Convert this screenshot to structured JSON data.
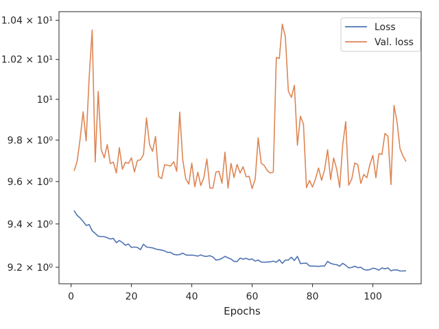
{
  "chart_data": {
    "type": "line",
    "title": "",
    "xlabel": "Epochs",
    "ylabel": "",
    "xlim": [
      -4,
      116
    ],
    "ylim": [
      9.125,
      10.445
    ],
    "yscale": "log",
    "grid": false,
    "legend_position": "top-right",
    "x_ticks": [
      0,
      20,
      40,
      60,
      80,
      100
    ],
    "y_ticks": [
      {
        "value": 9.2,
        "label": "9.2 × 10⁰"
      },
      {
        "value": 9.4,
        "label": "9.4 × 10⁰"
      },
      {
        "value": 9.6,
        "label": "9.6 × 10⁰"
      },
      {
        "value": 9.8,
        "label": "9.8 × 10⁰"
      },
      {
        "value": 10.0,
        "label": "10¹"
      },
      {
        "value": 10.2,
        "label": "1.02 × 10¹"
      },
      {
        "value": 10.4,
        "label": "1.04 × 10¹"
      }
    ],
    "x": [
      1,
      2,
      3,
      4,
      5,
      6,
      7,
      8,
      9,
      10,
      11,
      12,
      13,
      14,
      15,
      16,
      17,
      18,
      19,
      20,
      21,
      22,
      23,
      24,
      25,
      26,
      27,
      28,
      29,
      30,
      31,
      32,
      33,
      34,
      35,
      36,
      37,
      38,
      39,
      40,
      41,
      42,
      43,
      44,
      45,
      46,
      47,
      48,
      49,
      50,
      51,
      52,
      53,
      54,
      55,
      56,
      57,
      58,
      59,
      60,
      61,
      62,
      63,
      64,
      65,
      66,
      67,
      68,
      69,
      70,
      71,
      72,
      73,
      74,
      75,
      76,
      77,
      78,
      79,
      80,
      81,
      82,
      83,
      84,
      85,
      86,
      87,
      88,
      89,
      90,
      91,
      92,
      93,
      94,
      95,
      96,
      97,
      98,
      99,
      100,
      101,
      102,
      103,
      104,
      105,
      106,
      107,
      108,
      109,
      110,
      111
    ],
    "series": [
      {
        "name": "Loss",
        "color": "#4c72b0",
        "values": [
          9.463,
          9.44,
          9.428,
          9.412,
          9.393,
          9.397,
          9.368,
          9.356,
          9.343,
          9.341,
          9.341,
          9.336,
          9.33,
          9.333,
          9.313,
          9.323,
          9.314,
          9.301,
          9.307,
          9.291,
          9.293,
          9.291,
          9.281,
          9.306,
          9.293,
          9.291,
          9.289,
          9.284,
          9.281,
          9.279,
          9.275,
          9.268,
          9.268,
          9.259,
          9.257,
          9.258,
          9.265,
          9.257,
          9.255,
          9.256,
          9.254,
          9.251,
          9.257,
          9.251,
          9.25,
          9.253,
          9.247,
          9.233,
          9.235,
          9.241,
          9.25,
          9.243,
          9.238,
          9.227,
          9.226,
          9.242,
          9.237,
          9.241,
          9.235,
          9.238,
          9.228,
          9.233,
          9.224,
          9.223,
          9.224,
          9.225,
          9.228,
          9.223,
          9.235,
          9.218,
          9.233,
          9.233,
          9.246,
          9.231,
          9.25,
          9.217,
          9.218,
          9.219,
          9.206,
          9.205,
          9.205,
          9.204,
          9.206,
          9.206,
          9.227,
          9.218,
          9.214,
          9.212,
          9.205,
          9.218,
          9.209,
          9.197,
          9.199,
          9.205,
          9.198,
          9.2,
          9.19,
          9.187,
          9.189,
          9.196,
          9.193,
          9.187,
          9.197,
          9.193,
          9.197,
          9.184,
          9.188,
          9.188,
          9.183,
          9.183,
          9.184
        ]
      },
      {
        "name": "Val. loss",
        "color": "#dd8452",
        "values": [
          9.651,
          9.696,
          9.805,
          9.938,
          9.796,
          10.11,
          10.35,
          9.694,
          10.04,
          9.753,
          9.714,
          9.778,
          9.686,
          9.693,
          9.641,
          9.763,
          9.659,
          9.692,
          9.687,
          9.714,
          9.646,
          9.701,
          9.704,
          9.73,
          9.908,
          9.778,
          9.745,
          9.817,
          9.624,
          9.614,
          9.681,
          9.678,
          9.674,
          9.695,
          9.649,
          9.937,
          9.705,
          9.613,
          9.588,
          9.688,
          9.575,
          9.645,
          9.581,
          9.619,
          9.708,
          9.569,
          9.569,
          9.645,
          9.649,
          9.592,
          9.741,
          9.569,
          9.687,
          9.619,
          9.682,
          9.641,
          9.671,
          9.623,
          9.625,
          9.567,
          9.611,
          9.811,
          9.688,
          9.677,
          9.653,
          9.641,
          9.645,
          10.21,
          10.205,
          10.38,
          10.315,
          10.04,
          10.01,
          10.07,
          9.775,
          9.916,
          9.878,
          9.571,
          9.605,
          9.574,
          9.613,
          9.665,
          9.606,
          9.656,
          9.753,
          9.609,
          9.713,
          9.66,
          9.572,
          9.775,
          9.89,
          9.583,
          9.612,
          9.689,
          9.681,
          9.591,
          9.634,
          9.618,
          9.681,
          9.726,
          9.618,
          9.734,
          9.73,
          9.832,
          9.818,
          9.586,
          9.97,
          9.889,
          9.758,
          9.721,
          9.696
        ]
      }
    ]
  }
}
